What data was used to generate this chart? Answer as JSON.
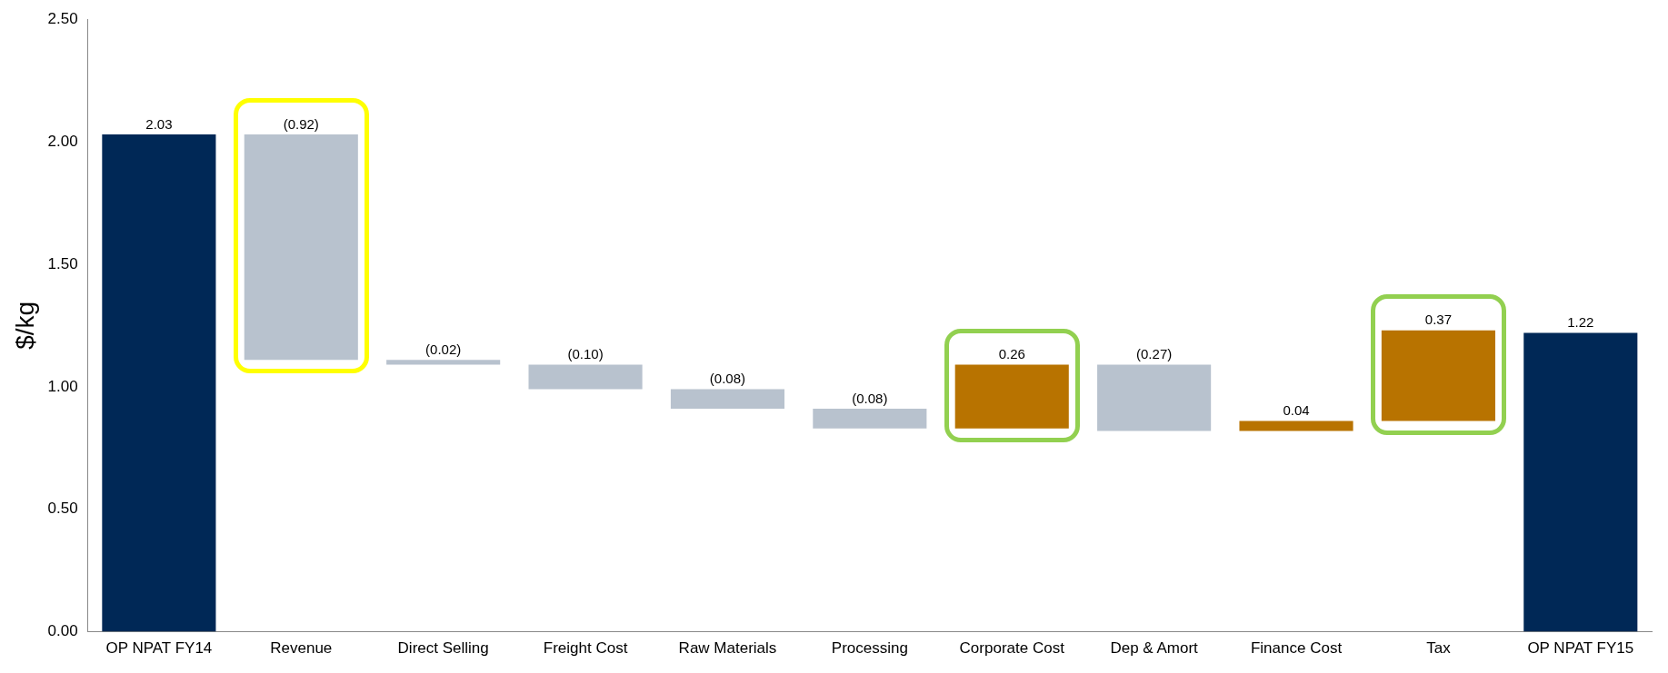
{
  "chart_data": {
    "type": "bar",
    "ylabel": "$/kg",
    "categories": [
      "OP NPAT FY14",
      "Revenue",
      "Direct Selling",
      "Freight Cost",
      "Raw Materials",
      "Processing",
      "Corporate Cost",
      "Dep & Amort",
      "Finance Cost",
      "Tax",
      "OP NPAT FY15"
    ],
    "values": [
      2.03,
      -0.92,
      -0.02,
      -0.1,
      -0.08,
      -0.08,
      0.26,
      -0.27,
      0.04,
      0.37,
      1.22
    ],
    "base": [
      0,
      2.03,
      1.11,
      1.09,
      0.99,
      0.91,
      0.83,
      1.09,
      0.82,
      0.86,
      0
    ],
    "value_labels": [
      "2.03",
      "(0.92)",
      "(0.02)",
      "(0.10)",
      "(0.08)",
      "(0.08)",
      "0.26",
      "(0.27)",
      "0.04",
      "0.37",
      "1.22"
    ],
    "colors": [
      "#002856",
      "#b8c2ce",
      "#b8c2ce",
      "#b8c2ce",
      "#b8c2ce",
      "#b8c2ce",
      "#b87300",
      "#b8c2ce",
      "#b87300",
      "#b87300",
      "#002856"
    ],
    "ylim": [
      0,
      2.5
    ],
    "yticks": [
      {
        "value": 0,
        "label": "0.00"
      },
      {
        "value": 0.5,
        "label": "0.50"
      },
      {
        "value": 1,
        "label": "1.00"
      },
      {
        "value": 1.5,
        "label": "1.50"
      },
      {
        "value": 2,
        "label": "2.00"
      },
      {
        "value": 2.5,
        "label": "2.50"
      }
    ],
    "grid": false,
    "legend": false
  }
}
